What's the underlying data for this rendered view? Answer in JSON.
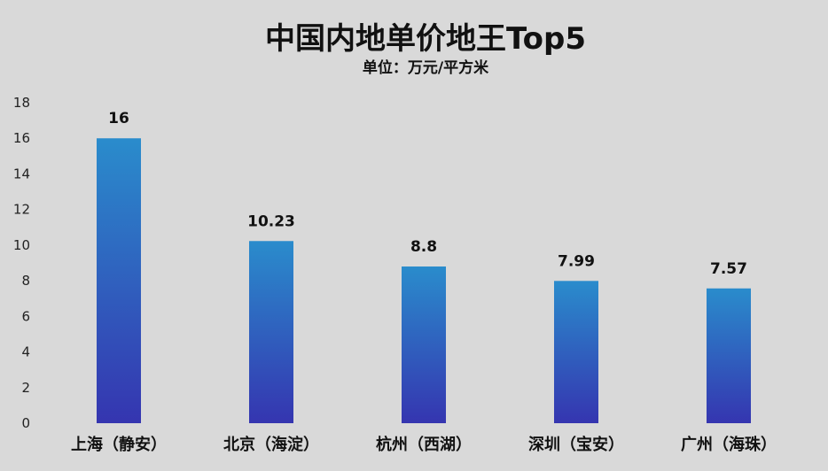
{
  "chart_data": {
    "type": "bar",
    "title": "中国内地单价地王Top5",
    "subtitle": "单位：万元/平方米",
    "xlabel": "",
    "ylabel": "",
    "categories": [
      "上海（静安）",
      "北京（海淀）",
      "杭州（西湖）",
      "深圳（宝安）",
      "广州（海珠）"
    ],
    "values": [
      16,
      10.23,
      8.8,
      7.99,
      7.57
    ],
    "data_labels": [
      "16",
      "10.23",
      "8.8",
      "7.99",
      "7.57"
    ],
    "ylim": [
      0,
      18
    ],
    "yticks": [
      0,
      2,
      4,
      6,
      8,
      10,
      12,
      14,
      16,
      18
    ],
    "grid": false,
    "legend": "none",
    "colors": {
      "background": "#d9d9d9",
      "bar_top": "#2a8ccc",
      "bar_bottom": "#3535b0"
    }
  }
}
